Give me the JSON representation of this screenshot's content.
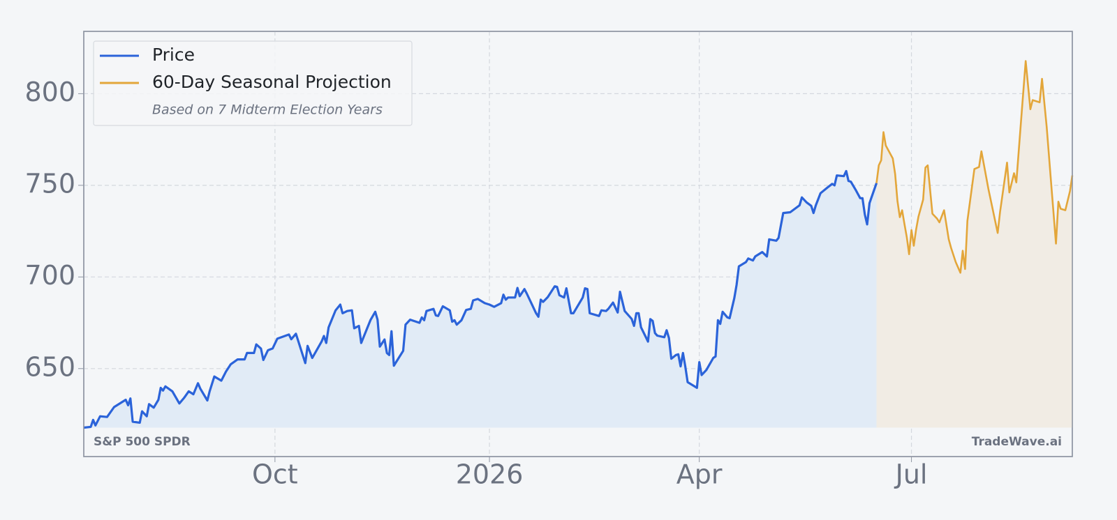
{
  "chart_data": {
    "type": "line",
    "legend": "upper left",
    "legend_note": "Based on 7 Midterm Election Years",
    "source_label": "S&P 500 SPDR",
    "brand_label": "TradeWave.ai",
    "grid": true,
    "xlim": [
      -82,
      342
    ],
    "xticks": [
      {
        "value": 0,
        "label": "Oct"
      },
      {
        "value": 92,
        "label": "2026"
      },
      {
        "value": 182,
        "label": "Apr"
      },
      {
        "value": 273,
        "label": "Jul"
      }
    ],
    "ylim": [
      602,
      834
    ],
    "yticks": [
      650,
      700,
      750,
      800
    ],
    "series": [
      {
        "name": "Price",
        "color": "#2b63d9",
        "fill": "#e1ebf6",
        "x": [
          -82,
          -79,
          -78,
          -77,
          -75,
          -72,
          -69,
          -64,
          -63,
          -62,
          -61,
          -58,
          -57,
          -55,
          -54,
          -52,
          -50,
          -49,
          -48,
          -47,
          -44,
          -41,
          -39,
          -37,
          -35,
          -33,
          -32,
          -29,
          -28,
          -26,
          -23,
          -21,
          -19,
          -16,
          -13,
          -12,
          -9,
          -8,
          -6,
          -5,
          -3,
          -1,
          1,
          6,
          7,
          9,
          13,
          14,
          16,
          20,
          21,
          22,
          23,
          26,
          28,
          29,
          31,
          33,
          34,
          36,
          37,
          41,
          43,
          44,
          45,
          47,
          48,
          49,
          50,
          51,
          55,
          56,
          58,
          62,
          63,
          64,
          65,
          68,
          69,
          70,
          72,
          75,
          76,
          77,
          78,
          80,
          82,
          84,
          85,
          87,
          90,
          92,
          94,
          97,
          98,
          99,
          100,
          103,
          104,
          105,
          107,
          108,
          112,
          113,
          114,
          115,
          117,
          120,
          121,
          122,
          124,
          125,
          127,
          128,
          132,
          133,
          134,
          135,
          139,
          140,
          142,
          143,
          145,
          147,
          148,
          150,
          153,
          154,
          155,
          156,
          157,
          159,
          160,
          161,
          162,
          163,
          164,
          167,
          168,
          169,
          170,
          172,
          173,
          174,
          175,
          176,
          177,
          181,
          182,
          183,
          185,
          188,
          189,
          190,
          191,
          192,
          194,
          195,
          197,
          198,
          199,
          202,
          203,
          205,
          206,
          209,
          211,
          212,
          215,
          216,
          218,
          221,
          223,
          225,
          226,
          228,
          230,
          231,
          232,
          234,
          237,
          239,
          240,
          241,
          244,
          245,
          246,
          247,
          249,
          251,
          252,
          253,
          254,
          255,
          258
        ],
        "values": [
          617.8,
          618.2,
          622,
          619,
          624,
          623.6,
          629,
          633,
          630,
          633.7,
          621,
          620.5,
          626.7,
          624,
          630.6,
          628.7,
          633,
          639.5,
          638,
          640.3,
          637.6,
          631,
          634,
          637.6,
          636,
          642,
          639,
          632.6,
          637.6,
          645.7,
          643.4,
          648.4,
          652.3,
          655,
          655,
          658.5,
          658.5,
          663.2,
          660.9,
          654.7,
          660,
          661,
          666.3,
          668.6,
          666,
          669,
          653,
          662.4,
          655.8,
          664.7,
          667.8,
          664,
          672.5,
          681.8,
          684.9,
          680.2,
          681.4,
          681.8,
          672,
          673.3,
          664,
          676.6,
          681,
          676.7,
          662,
          665.9,
          658.5,
          657.4,
          670.4,
          651.6,
          659.7,
          674,
          676.7,
          675,
          677.9,
          676.4,
          681.4,
          682.6,
          679,
          678.7,
          684,
          681.8,
          675.6,
          676.4,
          674,
          676.4,
          682,
          682.6,
          687.2,
          688,
          685.7,
          684.9,
          683.7,
          685.7,
          690.3,
          687.6,
          688.8,
          688.8,
          694,
          689.5,
          693.4,
          691,
          680.2,
          678.3,
          687.6,
          686.4,
          689,
          694.9,
          694.6,
          690,
          688.8,
          693.8,
          680.2,
          680.2,
          688.8,
          693.8,
          693.4,
          680.2,
          678.7,
          681.8,
          681.4,
          682.6,
          686,
          680.6,
          691.9,
          681.4,
          677.1,
          673.3,
          680.2,
          680.2,
          672.5,
          667.4,
          664.7,
          677,
          676,
          669.4,
          668,
          667.1,
          670.9,
          666.7,
          655.4,
          657.4,
          657.8,
          651.2,
          658.5,
          651.2,
          642.6,
          639.5,
          653.5,
          646.5,
          649.2,
          655.8,
          656.6,
          676.4,
          674.4,
          681,
          678,
          677.5,
          688.4,
          695.7,
          705.8,
          708.1,
          710.1,
          709,
          711.2,
          713.6,
          711.2,
          720.5,
          719.8,
          721.3,
          734.9,
          735.3,
          737.2,
          739.1,
          743.4,
          740.7,
          738.8,
          734.9,
          739.1,
          745.7,
          748.8,
          750.8,
          750,
          755.4,
          755,
          757.8,
          752.4,
          752,
          747.7,
          743,
          743,
          734.1,
          728.7,
          740.3,
          751.2
        ]
      },
      {
        "name": "60-Day Seasonal Projection",
        "color": "#e3a63a",
        "fill": "#f1ece4",
        "x": [
          258,
          259,
          260,
          261,
          262,
          265,
          266,
          267,
          268,
          269,
          270,
          271,
          272,
          273,
          274,
          275,
          276,
          278,
          279,
          280,
          282,
          284,
          285,
          287,
          289,
          290,
          292,
          294,
          295,
          296,
          297,
          300,
          302,
          303,
          306,
          310,
          311,
          314,
          315,
          317,
          318,
          320,
          322,
          324,
          325,
          328,
          329,
          331,
          333,
          335,
          336,
          337,
          339,
          341,
          342
        ],
        "values": [
          751.2,
          760.9,
          763.6,
          779,
          771.7,
          764.7,
          756.2,
          741.5,
          732.6,
          736.4,
          729,
          721.7,
          712.4,
          725.6,
          717,
          725.8,
          732.9,
          742.2,
          759.7,
          760.9,
          734.5,
          731.8,
          729.8,
          736.4,
          720.5,
          715.9,
          708.1,
          702.3,
          714.3,
          704.3,
          730.6,
          758.9,
          760,
          768.6,
          748,
          724,
          735.5,
          762.4,
          746.1,
          756.6,
          751.6,
          784.9,
          817.8,
          791.5,
          796.5,
          795.3,
          808.1,
          781.8,
          750,
          718.2,
          741.1,
          737.2,
          736.4,
          746.9,
          755.4
        ]
      }
    ]
  }
}
